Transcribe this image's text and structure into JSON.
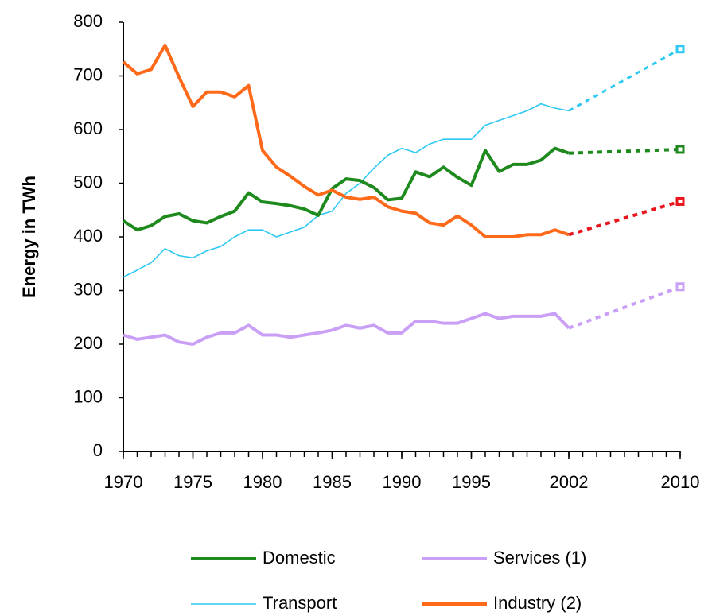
{
  "chart_data": {
    "type": "line",
    "y_label": "Energy in TWh",
    "x": [
      1970,
      1971,
      1972,
      1973,
      1974,
      1975,
      1976,
      1977,
      1978,
      1979,
      1980,
      1981,
      1982,
      1983,
      1984,
      1985,
      1986,
      1987,
      1988,
      1989,
      1990,
      1991,
      1992,
      1993,
      1994,
      1995,
      1996,
      1997,
      1998,
      1999,
      2000,
      2001,
      2002,
      2010
    ],
    "projection_start": 2002,
    "series": [
      {
        "name": "Domestic",
        "color": "#1e8a1e",
        "line_width": 4,
        "values": [
          430,
          413,
          421,
          438,
          443,
          430,
          426,
          438,
          448,
          482,
          465,
          462,
          458,
          452,
          440,
          490,
          508,
          505,
          492,
          469,
          472,
          521,
          512,
          530,
          511,
          496,
          561,
          522,
          535,
          535,
          543,
          565,
          556,
          563
        ]
      },
      {
        "name": "Services (1)",
        "color": "#c9a0f5",
        "line_width": 4,
        "values": [
          217,
          209,
          213,
          217,
          204,
          200,
          213,
          221,
          221,
          235,
          217,
          217,
          213,
          217,
          221,
          226,
          235,
          230,
          235,
          221,
          221,
          243,
          243,
          239,
          239,
          248,
          257,
          248,
          252,
          252,
          252,
          257,
          230,
          307
        ]
      },
      {
        "name": "Transport",
        "color": "#2ec8f2",
        "line_width": 1.6,
        "values": [
          325,
          338,
          352,
          378,
          365,
          361,
          374,
          382,
          400,
          413,
          413,
          400,
          409,
          418,
          440,
          448,
          481,
          500,
          528,
          552,
          565,
          557,
          573,
          582,
          582,
          582,
          608,
          617,
          626,
          635,
          648,
          640,
          635,
          750
        ]
      },
      {
        "name": "Industry (2)",
        "color": "#ff6a1a",
        "projection_color": "#e8161c",
        "line_width": 4,
        "values": [
          726,
          704,
          712,
          757,
          698,
          643,
          670,
          670,
          661,
          682,
          561,
          530,
          513,
          494,
          478,
          487,
          474,
          470,
          474,
          456,
          448,
          444,
          426,
          422,
          439,
          422,
          400,
          400,
          400,
          404,
          404,
          413,
          404,
          466
        ]
      }
    ],
    "xlim": [
      1970,
      2010
    ],
    "xticks": [
      1970,
      1975,
      1980,
      1985,
      1990,
      1995,
      2002,
      2010
    ],
    "xminorticks": [
      1970,
      1971,
      1972,
      1973,
      1974,
      1975,
      1976,
      1977,
      1978,
      1979,
      1980,
      1981,
      1982,
      1983,
      1984,
      1985,
      1986,
      1987,
      1988,
      1989,
      1990,
      1991,
      1992,
      1993,
      1994,
      1995,
      1996,
      1997,
      1998,
      1999,
      2000,
      2001,
      2002,
      2003,
      2004,
      2005,
      2006,
      2007,
      2008,
      2009,
      2010
    ],
    "ylim": [
      0,
      800
    ],
    "yticks": [
      0,
      100,
      200,
      300,
      400,
      500,
      600,
      700,
      800
    ],
    "grid": false,
    "legend": "bottom"
  }
}
